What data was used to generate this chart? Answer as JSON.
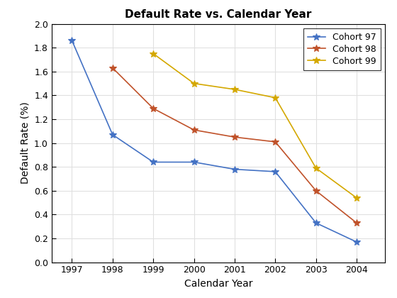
{
  "title": "Default Rate vs. Calendar Year",
  "xlabel": "Calendar Year",
  "ylabel": "Default Rate (%)",
  "cohort97": {
    "label": "Cohort 97",
    "x": [
      1997,
      1998,
      1999,
      2000,
      2001,
      2002,
      2003,
      2004
    ],
    "y": [
      1.86,
      1.07,
      0.84,
      0.84,
      0.78,
      0.76,
      0.33,
      0.17
    ],
    "color": "#4472c4",
    "marker": "*"
  },
  "cohort98": {
    "label": "Cohort 98",
    "x": [
      1998,
      1999,
      2000,
      2001,
      2002,
      2003,
      2004
    ],
    "y": [
      1.63,
      1.29,
      1.11,
      1.05,
      1.01,
      0.6,
      0.33
    ],
    "color": "#c0522a",
    "marker": "*"
  },
  "cohort99": {
    "label": "Cohort 99",
    "x": [
      1999,
      2000,
      2001,
      2002,
      2003,
      2004
    ],
    "y": [
      1.75,
      1.5,
      1.45,
      1.38,
      0.79,
      0.54
    ],
    "color": "#d4a800",
    "marker": "*"
  },
  "xlim": [
    1996.5,
    2004.7
  ],
  "ylim": [
    0,
    2.0
  ],
  "yticks": [
    0,
    0.2,
    0.4,
    0.6,
    0.8,
    1.0,
    1.2,
    1.4,
    1.6,
    1.8,
    2.0
  ],
  "xticks": [
    1997,
    1998,
    1999,
    2000,
    2001,
    2002,
    2003,
    2004
  ],
  "background_color": "#ffffff",
  "grid_color": "#e0e0e0",
  "title_fontsize": 11,
  "label_fontsize": 10,
  "tick_fontsize": 9,
  "legend_fontsize": 9,
  "linewidth": 1.2,
  "markersize": 7
}
